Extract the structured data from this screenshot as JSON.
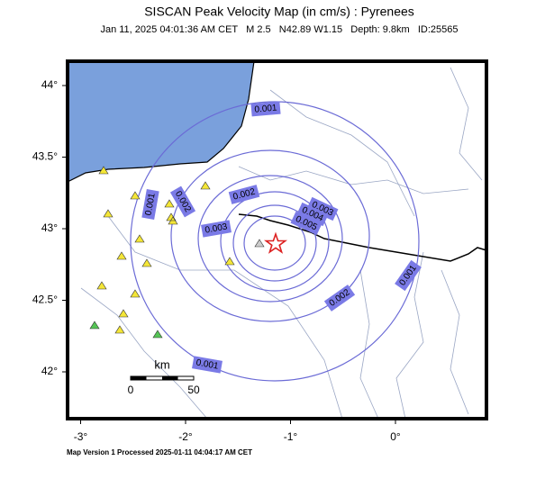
{
  "map": {
    "title": "SISCAN Peak Velocity Map (in cm/s) : Pyrenees",
    "subtitle": "Jan 11, 2025 04:01:36 AM CET   M 2.5   N42.89 W1.15   Depth: 9.8km   ID:25565",
    "lat_ticks": [
      {
        "value": 44,
        "label": "44°"
      },
      {
        "value": 43.5,
        "label": "43.5°"
      },
      {
        "value": 43,
        "label": "43°"
      },
      {
        "value": 42.5,
        "label": "42.5°"
      },
      {
        "value": 42,
        "label": "42°"
      }
    ],
    "lon_ticks": [
      {
        "value": -3,
        "label": "-3°"
      },
      {
        "value": -2,
        "label": "-2°"
      },
      {
        "value": -1,
        "label": "-1°"
      },
      {
        "value": 0,
        "label": "0°"
      }
    ],
    "contour_labels": [
      "0.001",
      "0.001",
      "0.001",
      "0.001",
      "0.002",
      "0.002",
      "0.002",
      "0.003",
      "0.003",
      "0.004",
      "0.005"
    ],
    "scale_bar": {
      "unit": "km",
      "start": "0",
      "end": "50"
    },
    "footer": "Map Version 1 Processed 2025-01-11 04:04:17 AM CET"
  }
}
